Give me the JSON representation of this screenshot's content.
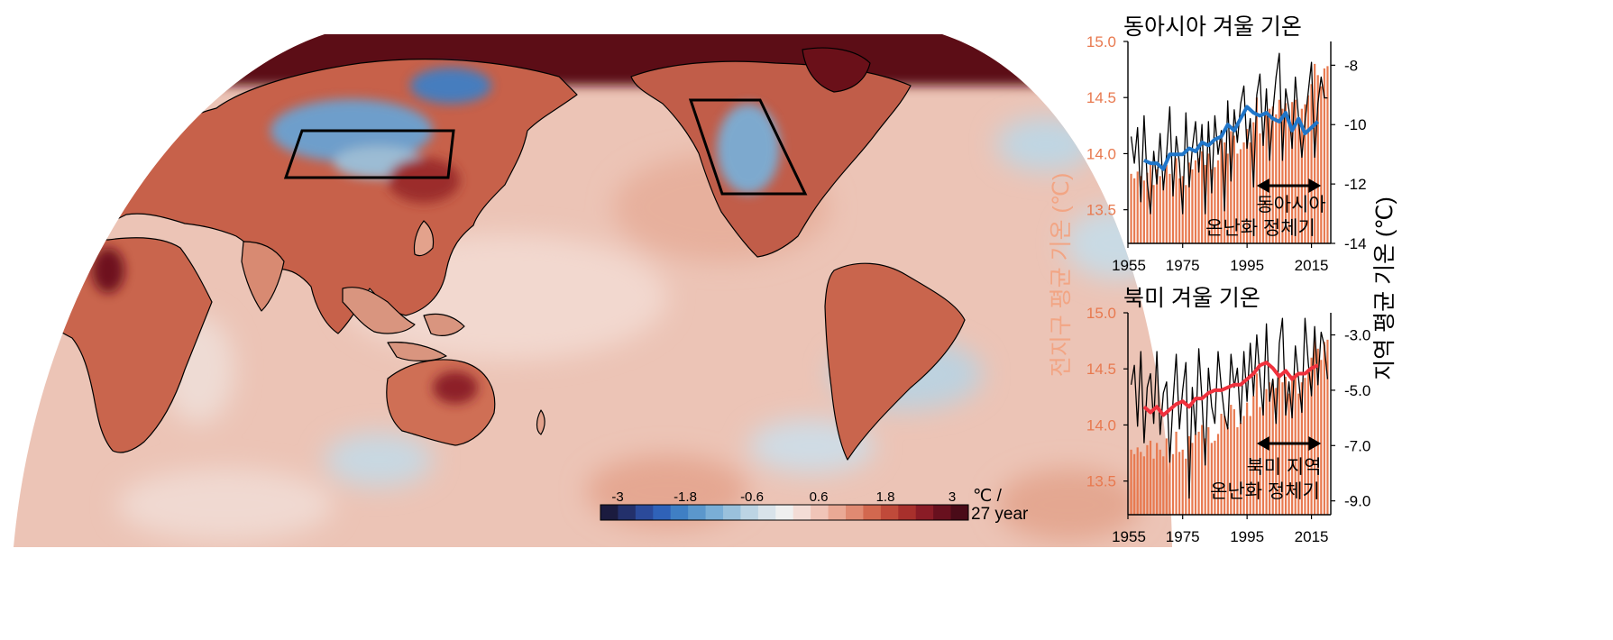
{
  "map": {
    "colorbar": {
      "ticks": [
        "-3",
        "-1.8",
        "-0.6",
        "0.6",
        "1.8",
        "3"
      ],
      "unit_line1": "℃ /",
      "unit_line2": "27 year",
      "colors": [
        "#1b1b3f",
        "#23306b",
        "#2b4a9a",
        "#2f62b8",
        "#3f7fc4",
        "#5b97cc",
        "#7aaed6",
        "#9ac1dc",
        "#bcd4e4",
        "#d9e3ea",
        "#efefef",
        "#f3dcd6",
        "#f0c5b8",
        "#eaa995",
        "#e08a72",
        "#d2684f",
        "#c04a3a",
        "#a8302c",
        "#8a1c26",
        "#68101e",
        "#4a0b18"
      ]
    },
    "colors": {
      "land_outline": "#000000",
      "ocean_base": "#ecc4b6",
      "arctic": "#5c0c15",
      "box_stroke": "#000000"
    }
  },
  "chart_data": [
    {
      "type": "bar+line",
      "title": "동아시아 겨울 기온",
      "xlabel": "",
      "xlim": [
        1958,
        2021
      ],
      "xticks": [
        "1955",
        "1975",
        "1995",
        "2015"
      ],
      "xtick_values": [
        1955,
        1975,
        1995,
        2015
      ],
      "left_axis": {
        "ylim": [
          13.2,
          15.0
        ],
        "ticks": [
          "13.5",
          "14.0",
          "14.5",
          "15.0"
        ],
        "tick_values": [
          13.5,
          14.0,
          14.5,
          15.0
        ],
        "color": "#e8794f"
      },
      "right_axis": {
        "ylim": [
          -14,
          -7.2
        ],
        "ticks": [
          "-14",
          "-12",
          "-10",
          "-8"
        ],
        "tick_values": [
          -14,
          -12,
          -10,
          -8
        ]
      },
      "annotation": {
        "lines": [
          "동아시아",
          "온난화 정체기"
        ],
        "arrow_from": 1998,
        "arrow_to": 2018
      },
      "series": [
        {
          "axis": "left",
          "style": "bar",
          "color": "#e8794f",
          "x": [
            1959,
            1960,
            1961,
            1962,
            1963,
            1964,
            1965,
            1966,
            1967,
            1968,
            1969,
            1970,
            1971,
            1972,
            1973,
            1974,
            1975,
            1976,
            1977,
            1978,
            1979,
            1980,
            1981,
            1982,
            1983,
            1984,
            1985,
            1986,
            1987,
            1988,
            1989,
            1990,
            1991,
            1992,
            1993,
            1994,
            1995,
            1996,
            1997,
            1998,
            1999,
            2000,
            2001,
            2002,
            2003,
            2004,
            2005,
            2006,
            2007,
            2008,
            2009,
            2010,
            2011,
            2012,
            2013,
            2014,
            2015,
            2016,
            2017,
            2018,
            2019,
            2020
          ],
          "values": [
            13.82,
            13.78,
            13.84,
            13.8,
            13.76,
            13.83,
            13.9,
            13.72,
            13.86,
            13.8,
            13.74,
            13.9,
            13.82,
            13.76,
            13.96,
            13.78,
            13.8,
            13.72,
            13.92,
            13.86,
            13.94,
            13.96,
            14.02,
            13.9,
            14.0,
            13.86,
            13.88,
            13.94,
            14.12,
            14.1,
            14.0,
            14.2,
            14.16,
            14.0,
            14.04,
            14.1,
            14.22,
            14.1,
            14.28,
            14.5,
            14.18,
            14.2,
            14.35,
            14.4,
            14.42,
            14.35,
            14.48,
            14.4,
            14.45,
            14.3,
            14.46,
            14.48,
            14.3,
            14.4,
            14.44,
            14.52,
            14.62,
            14.8,
            14.7,
            14.6,
            14.76,
            14.78
          ]
        },
        {
          "axis": "right",
          "style": "thin-line",
          "color": "#000000",
          "x": [
            1959,
            1960,
            1961,
            1962,
            1963,
            1964,
            1965,
            1966,
            1967,
            1968,
            1969,
            1970,
            1971,
            1972,
            1973,
            1974,
            1975,
            1976,
            1977,
            1978,
            1979,
            1980,
            1981,
            1982,
            1983,
            1984,
            1985,
            1986,
            1987,
            1988,
            1989,
            1990,
            1991,
            1992,
            1993,
            1994,
            1995,
            1996,
            1997,
            1998,
            1999,
            2000,
            2001,
            2002,
            2003,
            2004,
            2005,
            2006,
            2007,
            2008,
            2009,
            2010,
            2011,
            2012,
            2013,
            2014,
            2015,
            2016,
            2017,
            2018,
            2019,
            2020
          ],
          "values": [
            -10.4,
            -11.3,
            -10.1,
            -12.6,
            -9.7,
            -11.9,
            -13.0,
            -10.9,
            -12.0,
            -10.3,
            -12.2,
            -11.0,
            -9.4,
            -12.4,
            -10.4,
            -11.3,
            -13.0,
            -9.6,
            -12.1,
            -10.8,
            -9.9,
            -11.6,
            -10.0,
            -13.0,
            -9.9,
            -12.3,
            -9.7,
            -11.0,
            -10.2,
            -12.9,
            -9.2,
            -11.9,
            -9.5,
            -10.6,
            -9.3,
            -8.7,
            -10.8,
            -9.8,
            -12.1,
            -9.0,
            -8.3,
            -10.7,
            -8.8,
            -11.2,
            -9.6,
            -8.4,
            -7.6,
            -11.2,
            -8.8,
            -9.5,
            -10.8,
            -8.4,
            -9.8,
            -11.1,
            -9.9,
            -8.9,
            -7.9,
            -11.1,
            -9.3,
            -8.4,
            -9.1,
            -9.1
          ]
        },
        {
          "axis": "right",
          "style": "thick-line",
          "color": "#2076c9",
          "x": [
            1963,
            1965,
            1967,
            1969,
            1971,
            1973,
            1975,
            1977,
            1979,
            1981,
            1983,
            1985,
            1987,
            1989,
            1991,
            1993,
            1995,
            1997,
            1999,
            2001,
            2003,
            2005,
            2007,
            2009,
            2011,
            2013,
            2015,
            2017
          ],
          "values": [
            -11.2,
            -11.3,
            -11.3,
            -11.5,
            -11.0,
            -11.0,
            -11.0,
            -10.8,
            -10.9,
            -10.6,
            -10.7,
            -10.5,
            -10.4,
            -10.0,
            -10.2,
            -9.8,
            -9.4,
            -9.6,
            -9.7,
            -9.6,
            -9.8,
            -9.9,
            -9.6,
            -10.2,
            -9.8,
            -10.3,
            -10.1,
            -9.9
          ]
        }
      ]
    },
    {
      "type": "bar+line",
      "title": "북미 겨울 기온",
      "xlabel": "",
      "xlim": [
        1958,
        2021
      ],
      "xticks": [
        "1955",
        "1975",
        "1995",
        "2015"
      ],
      "xtick_values": [
        1955,
        1975,
        1995,
        2015
      ],
      "left_axis": {
        "ylim": [
          13.2,
          15.0
        ],
        "ticks": [
          "13.5",
          "14.0",
          "14.5",
          "15.0"
        ],
        "tick_values": [
          13.5,
          14.0,
          14.5,
          15.0
        ],
        "color": "#e8794f"
      },
      "right_axis": {
        "ylim": [
          -9.5,
          -2.2
        ],
        "ticks": [
          "-9.0",
          "-7.0",
          "-5.0",
          "-3.0"
        ],
        "tick_values": [
          -9.0,
          -7.0,
          -5.0,
          -3.0
        ]
      },
      "annotation": {
        "lines": [
          "북미 지역",
          "온난화 정체기"
        ],
        "arrow_from": 1998,
        "arrow_to": 2018
      },
      "series": [
        {
          "axis": "left",
          "style": "bar",
          "color": "#e8794f",
          "x": [
            1959,
            1960,
            1961,
            1962,
            1963,
            1964,
            1965,
            1966,
            1967,
            1968,
            1969,
            1970,
            1971,
            1972,
            1973,
            1974,
            1975,
            1976,
            1977,
            1978,
            1979,
            1980,
            1981,
            1982,
            1983,
            1984,
            1985,
            1986,
            1987,
            1988,
            1989,
            1990,
            1991,
            1992,
            1993,
            1994,
            1995,
            1996,
            1997,
            1998,
            1999,
            2000,
            2001,
            2002,
            2003,
            2004,
            2005,
            2006,
            2007,
            2008,
            2009,
            2010,
            2011,
            2012,
            2013,
            2014,
            2015,
            2016,
            2017,
            2018,
            2019,
            2020
          ],
          "values": [
            13.78,
            13.74,
            13.8,
            13.76,
            13.72,
            13.82,
            13.86,
            13.7,
            13.84,
            13.78,
            13.72,
            13.88,
            13.8,
            13.74,
            13.94,
            13.76,
            13.78,
            13.7,
            13.9,
            13.84,
            13.92,
            13.94,
            14.0,
            13.88,
            13.98,
            13.84,
            13.86,
            13.92,
            14.1,
            14.08,
            13.98,
            14.18,
            14.14,
            13.98,
            14.02,
            14.08,
            14.2,
            14.08,
            14.26,
            14.46,
            14.16,
            14.18,
            14.32,
            14.38,
            14.4,
            14.33,
            14.46,
            14.38,
            14.43,
            14.28,
            14.44,
            14.46,
            14.28,
            14.38,
            14.42,
            14.5,
            14.6,
            14.78,
            14.68,
            14.58,
            14.74,
            14.76
          ]
        },
        {
          "axis": "right",
          "style": "thin-line",
          "color": "#000000",
          "x": [
            1959,
            1960,
            1961,
            1962,
            1963,
            1964,
            1965,
            1966,
            1967,
            1968,
            1969,
            1970,
            1971,
            1972,
            1973,
            1974,
            1975,
            1976,
            1977,
            1978,
            1979,
            1980,
            1981,
            1982,
            1983,
            1984,
            1985,
            1986,
            1987,
            1988,
            1989,
            1990,
            1991,
            1992,
            1993,
            1994,
            1995,
            1996,
            1997,
            1998,
            1999,
            2000,
            2001,
            2002,
            2003,
            2004,
            2005,
            2006,
            2007,
            2008,
            2009,
            2010,
            2011,
            2012,
            2013,
            2014,
            2015,
            2016,
            2017,
            2018,
            2019,
            2020
          ],
          "values": [
            -4.8,
            -4.1,
            -6.3,
            -3.6,
            -6.9,
            -4.9,
            -4.4,
            -6.2,
            -3.6,
            -6.6,
            -5.1,
            -4.7,
            -7.6,
            -5.4,
            -3.7,
            -6.4,
            -5.0,
            -4.0,
            -8.9,
            -4.9,
            -6.6,
            -3.5,
            -5.3,
            -7.7,
            -4.2,
            -5.6,
            -6.2,
            -3.6,
            -4.9,
            -5.9,
            -6.4,
            -3.7,
            -4.9,
            -4.2,
            -6.2,
            -3.6,
            -5.4,
            -3.3,
            -5.2,
            -3.0,
            -4.5,
            -5.9,
            -2.6,
            -5.4,
            -4.6,
            -6.2,
            -3.3,
            -2.4,
            -5.9,
            -4.7,
            -6.0,
            -3.4,
            -4.6,
            -5.8,
            -2.4,
            -4.0,
            -5.2,
            -2.7,
            -4.8,
            -2.9,
            -3.4,
            -4.6
          ]
        },
        {
          "axis": "right",
          "style": "thick-line",
          "color": "#f0313d",
          "x": [
            1963,
            1965,
            1967,
            1969,
            1971,
            1973,
            1975,
            1977,
            1979,
            1981,
            1983,
            1985,
            1987,
            1989,
            1991,
            1993,
            1995,
            1997,
            1999,
            2001,
            2003,
            2005,
            2007,
            2009,
            2011,
            2013,
            2015,
            2017
          ],
          "values": [
            -5.6,
            -5.8,
            -5.6,
            -5.9,
            -5.7,
            -5.5,
            -5.4,
            -5.6,
            -5.3,
            -5.3,
            -5.1,
            -5.0,
            -5.0,
            -4.9,
            -4.8,
            -4.8,
            -4.6,
            -4.4,
            -4.1,
            -4.0,
            -4.2,
            -4.5,
            -4.3,
            -4.6,
            -4.4,
            -4.4,
            -4.2,
            -4.1
          ]
        }
      ]
    }
  ],
  "shared_axes": {
    "left_label": "전지구 평균 기온 (℃)",
    "right_label": "지역 평균 기온 (℃)"
  }
}
